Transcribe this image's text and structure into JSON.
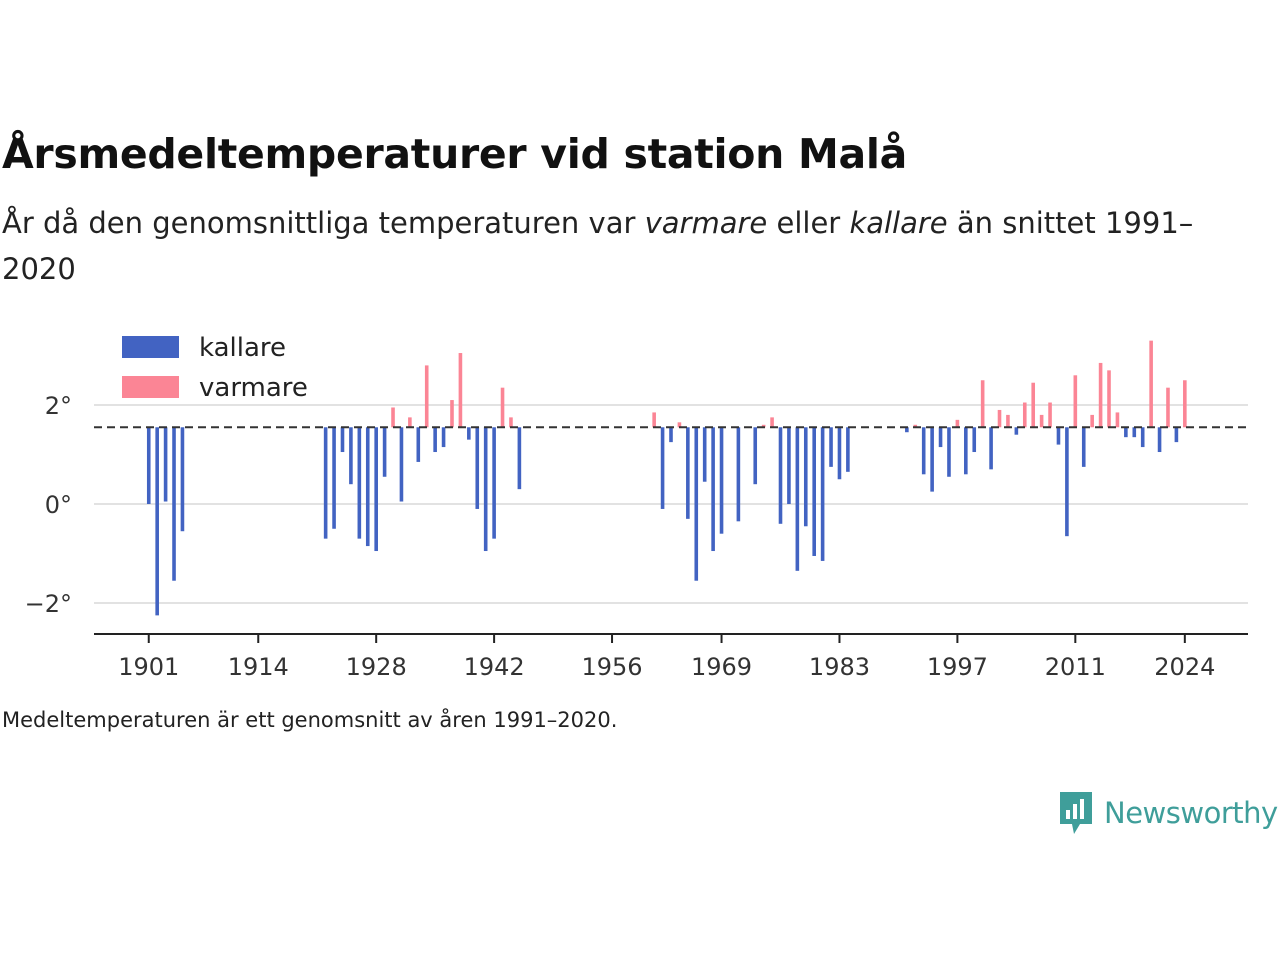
{
  "title": "Årsmedeltemperaturer vid station Malå",
  "subtitle": {
    "part1": "År då den genomsnittliga temperaturen var ",
    "em1": "varmare",
    "part2": " eller ",
    "em2": "kallare",
    "part3": " än snittet 1991–2020"
  },
  "footnote": "Medeltemperaturen är ett genomsnitt av åren 1991–2020.",
  "brand": {
    "name": "Newsworthy"
  },
  "colors": {
    "kallare": "#4263c2",
    "varmare": "#fb8595",
    "grid": "#e2e2e2",
    "axis": "#222222",
    "brand": "#3f9e9a"
  },
  "chart_data": {
    "type": "bar",
    "baseline": 1.55,
    "ylim": [
      -2.6,
      3.6
    ],
    "xlim": [
      1894.5,
      2031.5
    ],
    "yticks": [
      {
        "value": -2,
        "label": "−2°"
      },
      {
        "value": 0,
        "label": "0°"
      },
      {
        "value": 2,
        "label": "2°"
      }
    ],
    "xticks": [
      1901,
      1914,
      1928,
      1942,
      1956,
      1969,
      1983,
      1997,
      2011,
      2024
    ],
    "legend": {
      "position": "top-left",
      "items": [
        {
          "key": "kallare",
          "label": "kallare"
        },
        {
          "key": "varmare",
          "label": "varmare"
        }
      ]
    },
    "series": [
      {
        "year": 1901,
        "value": 0.0
      },
      {
        "year": 1902,
        "value": -2.25
      },
      {
        "year": 1903,
        "value": 0.05
      },
      {
        "year": 1904,
        "value": -1.55
      },
      {
        "year": 1905,
        "value": -0.55
      },
      {
        "year": 1922,
        "value": -0.7
      },
      {
        "year": 1923,
        "value": -0.5
      },
      {
        "year": 1924,
        "value": 1.05
      },
      {
        "year": 1925,
        "value": 0.4
      },
      {
        "year": 1926,
        "value": -0.7
      },
      {
        "year": 1927,
        "value": -0.85
      },
      {
        "year": 1928,
        "value": -0.95
      },
      {
        "year": 1929,
        "value": 0.55
      },
      {
        "year": 1930,
        "value": 1.95
      },
      {
        "year": 1931,
        "value": 0.05
      },
      {
        "year": 1932,
        "value": 1.75
      },
      {
        "year": 1933,
        "value": 0.85
      },
      {
        "year": 1934,
        "value": 2.8
      },
      {
        "year": 1935,
        "value": 1.05
      },
      {
        "year": 1936,
        "value": 1.15
      },
      {
        "year": 1937,
        "value": 2.1
      },
      {
        "year": 1938,
        "value": 3.05
      },
      {
        "year": 1939,
        "value": 1.3
      },
      {
        "year": 1940,
        "value": -0.1
      },
      {
        "year": 1941,
        "value": -0.95
      },
      {
        "year": 1942,
        "value": -0.7
      },
      {
        "year": 1943,
        "value": 2.35
      },
      {
        "year": 1944,
        "value": 1.75
      },
      {
        "year": 1945,
        "value": 0.3
      },
      {
        "year": 1961,
        "value": 1.85
      },
      {
        "year": 1962,
        "value": -0.1
      },
      {
        "year": 1963,
        "value": 1.25
      },
      {
        "year": 1964,
        "value": 1.65
      },
      {
        "year": 1965,
        "value": -0.3
      },
      {
        "year": 1966,
        "value": -1.55
      },
      {
        "year": 1967,
        "value": 0.45
      },
      {
        "year": 1968,
        "value": -0.95
      },
      {
        "year": 1969,
        "value": -0.6
      },
      {
        "year": 1971,
        "value": -0.35
      },
      {
        "year": 1973,
        "value": 0.4
      },
      {
        "year": 1974,
        "value": 1.6
      },
      {
        "year": 1975,
        "value": 1.75
      },
      {
        "year": 1976,
        "value": -0.4
      },
      {
        "year": 1977,
        "value": 0.0
      },
      {
        "year": 1978,
        "value": -1.35
      },
      {
        "year": 1979,
        "value": -0.45
      },
      {
        "year": 1980,
        "value": -1.05
      },
      {
        "year": 1981,
        "value": -1.15
      },
      {
        "year": 1982,
        "value": 0.75
      },
      {
        "year": 1983,
        "value": 0.5
      },
      {
        "year": 1984,
        "value": 0.65
      },
      {
        "year": 1991,
        "value": 1.45
      },
      {
        "year": 1992,
        "value": 1.6
      },
      {
        "year": 1993,
        "value": 0.6
      },
      {
        "year": 1994,
        "value": 0.25
      },
      {
        "year": 1995,
        "value": 1.15
      },
      {
        "year": 1996,
        "value": 0.55
      },
      {
        "year": 1997,
        "value": 1.7
      },
      {
        "year": 1998,
        "value": 0.6
      },
      {
        "year": 1999,
        "value": 1.05
      },
      {
        "year": 2000,
        "value": 2.5
      },
      {
        "year": 2001,
        "value": 0.7
      },
      {
        "year": 2002,
        "value": 1.9
      },
      {
        "year": 2003,
        "value": 1.8
      },
      {
        "year": 2004,
        "value": 1.4
      },
      {
        "year": 2005,
        "value": 2.05
      },
      {
        "year": 2006,
        "value": 2.45
      },
      {
        "year": 2007,
        "value": 1.8
      },
      {
        "year": 2008,
        "value": 2.05
      },
      {
        "year": 2009,
        "value": 1.2
      },
      {
        "year": 2010,
        "value": -0.65
      },
      {
        "year": 2011,
        "value": 2.6
      },
      {
        "year": 2012,
        "value": 0.75
      },
      {
        "year": 2013,
        "value": 1.8
      },
      {
        "year": 2014,
        "value": 2.85
      },
      {
        "year": 2015,
        "value": 2.7
      },
      {
        "year": 2016,
        "value": 1.85
      },
      {
        "year": 2017,
        "value": 1.35
      },
      {
        "year": 2018,
        "value": 1.35
      },
      {
        "year": 2019,
        "value": 1.15
      },
      {
        "year": 2020,
        "value": 3.3
      },
      {
        "year": 2021,
        "value": 1.05
      },
      {
        "year": 2022,
        "value": 2.35
      },
      {
        "year": 2023,
        "value": 1.25
      },
      {
        "year": 2024,
        "value": 2.5
      }
    ]
  }
}
